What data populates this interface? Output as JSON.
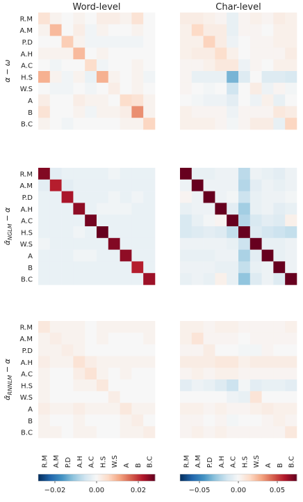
{
  "chart_data": {
    "type": "heatmap",
    "labels": [
      "R.M",
      "A.M",
      "P.D",
      "A.H",
      "A.C",
      "H.S",
      "W.S",
      "A",
      "B",
      "B.C"
    ],
    "columns": [
      "Word-level",
      "Char-level"
    ],
    "row_labels": [
      "α − ω",
      "ᾱ_NGLM − α",
      "ᾱ_RNNLM − α"
    ],
    "row_label_parts": [
      {
        "main": "α − ω",
        "sub": ""
      },
      {
        "main": "ᾱ",
        "sub": "NGLM",
        "rest": " − α"
      },
      {
        "main": "ᾱ",
        "sub": "RNNLM",
        "rest": " − α"
      }
    ],
    "colorbars": [
      {
        "ticks": [
          "−0.02",
          "0.00",
          "0.02"
        ],
        "tick_values": [
          -0.02,
          0,
          0.02
        ],
        "range": [
          -0.028,
          0.028
        ]
      },
      {
        "ticks": [
          "−0.05",
          "0.00",
          "0.05"
        ],
        "tick_values": [
          -0.05,
          0,
          0.05
        ],
        "range": [
          -0.075,
          0.075
        ]
      }
    ],
    "colormap": "RdBu_r",
    "panels": [
      {
        "row": 0,
        "col": 0,
        "matrix": [
          [
            0.004,
            0.001,
            0.0,
            0.001,
            0.0,
            0.002,
            0.002,
            0.001,
            0.004,
            0.0
          ],
          [
            0.001,
            0.009,
            0.0,
            0.002,
            -0.001,
            0.001,
            0.0,
            0.0,
            0.001,
            0.0
          ],
          [
            0.0,
            0.0,
            0.007,
            0.001,
            -0.001,
            -0.001,
            -0.001,
            -0.001,
            -0.001,
            0.0
          ],
          [
            0.001,
            0.001,
            0.001,
            0.009,
            0.0,
            0.001,
            0.0,
            0.0,
            0.0,
            0.0
          ],
          [
            0.0,
            -0.001,
            0.0,
            0.0,
            0.005,
            -0.001,
            0.0,
            0.0,
            0.001,
            0.0
          ],
          [
            0.01,
            0.001,
            -0.001,
            0.001,
            -0.002,
            0.01,
            0.001,
            0.0,
            0.001,
            -0.001
          ],
          [
            0.0,
            -0.001,
            -0.001,
            0.0,
            -0.001,
            0.0,
            0.002,
            0.0,
            0.001,
            0.0
          ],
          [
            0.002,
            0.0,
            0.0,
            0.002,
            0.001,
            0.001,
            0.0,
            0.005,
            0.004,
            0.001
          ],
          [
            0.004,
            0.0,
            0.0,
            0.001,
            -0.001,
            0.001,
            0.001,
            0.002,
            0.013,
            0.001
          ],
          [
            0.001,
            0.0,
            -0.001,
            0.0,
            0.0,
            0.0,
            0.0,
            0.001,
            0.001,
            0.006
          ]
        ]
      },
      {
        "row": 0,
        "col": 1,
        "matrix": [
          [
            0.006,
            0.006,
            0.004,
            0.002,
            -0.006,
            0.002,
            0.004,
            0.002,
            0.006,
            0.004
          ],
          [
            0.004,
            0.015,
            0.006,
            0.006,
            -0.006,
            0.002,
            0.002,
            0.0,
            0.004,
            0.004
          ],
          [
            0.004,
            0.004,
            0.017,
            0.006,
            -0.004,
            0.0,
            0.002,
            0.002,
            0.004,
            0.004
          ],
          [
            0.004,
            0.006,
            0.006,
            0.013,
            0.004,
            0.0,
            0.002,
            0.002,
            0.002,
            0.006
          ],
          [
            0.002,
            0.002,
            0.004,
            0.008,
            0.008,
            -0.004,
            0.002,
            0.0,
            0.004,
            0.004
          ],
          [
            0.002,
            -0.006,
            -0.006,
            -0.006,
            -0.035,
            -0.01,
            0.0,
            -0.01,
            -0.01,
            -0.012
          ],
          [
            0.002,
            0.0,
            -0.002,
            0.0,
            -0.015,
            0.0,
            0.006,
            -0.004,
            0.002,
            -0.002
          ],
          [
            0.0,
            -0.002,
            -0.004,
            -0.004,
            -0.008,
            0.0,
            -0.004,
            0.004,
            -0.006,
            0.0
          ],
          [
            0.004,
            0.002,
            0.002,
            0.002,
            -0.004,
            0.002,
            0.002,
            0.002,
            0.008,
            0.006
          ],
          [
            0.004,
            0.004,
            0.004,
            0.002,
            -0.002,
            0.002,
            0.006,
            0.006,
            -0.006,
            0.016
          ]
        ]
      },
      {
        "row": 1,
        "col": 0,
        "matrix": [
          [
            0.026,
            -0.003,
            -0.002,
            -0.002,
            -0.002,
            -0.002,
            -0.001,
            -0.002,
            -0.002,
            -0.002
          ],
          [
            -0.003,
            0.022,
            -0.003,
            -0.002,
            -0.002,
            -0.002,
            -0.002,
            -0.002,
            -0.002,
            -0.002
          ],
          [
            -0.002,
            -0.002,
            0.023,
            -0.002,
            -0.002,
            -0.002,
            -0.001,
            -0.002,
            -0.001,
            -0.002
          ],
          [
            -0.002,
            -0.002,
            -0.002,
            0.025,
            -0.002,
            -0.001,
            -0.001,
            -0.001,
            -0.002,
            -0.002
          ],
          [
            -0.002,
            -0.002,
            -0.002,
            -0.002,
            0.027,
            -0.002,
            -0.002,
            -0.002,
            -0.002,
            -0.002
          ],
          [
            -0.002,
            -0.002,
            -0.002,
            -0.001,
            -0.002,
            0.03,
            -0.002,
            -0.002,
            -0.002,
            -0.002
          ],
          [
            -0.001,
            -0.002,
            -0.002,
            -0.002,
            -0.002,
            -0.002,
            0.026,
            -0.002,
            -0.002,
            -0.002
          ],
          [
            -0.002,
            -0.002,
            -0.002,
            -0.001,
            -0.001,
            -0.002,
            -0.002,
            0.025,
            -0.002,
            -0.002
          ],
          [
            -0.002,
            -0.002,
            -0.002,
            -0.002,
            -0.002,
            -0.002,
            -0.002,
            -0.002,
            0.022,
            -0.002
          ],
          [
            -0.002,
            -0.002,
            -0.002,
            -0.002,
            -0.002,
            -0.002,
            -0.002,
            -0.002,
            -0.002,
            0.024
          ]
        ]
      },
      {
        "row": 1,
        "col": 1,
        "matrix": [
          [
            0.075,
            -0.006,
            -0.006,
            -0.004,
            -0.004,
            -0.02,
            -0.004,
            -0.006,
            -0.008,
            -0.004
          ],
          [
            -0.004,
            0.075,
            -0.004,
            -0.004,
            -0.004,
            -0.022,
            -0.008,
            -0.004,
            -0.006,
            -0.004
          ],
          [
            0.002,
            -0.004,
            0.075,
            -0.004,
            -0.002,
            -0.016,
            -0.006,
            -0.004,
            -0.004,
            -0.002
          ],
          [
            -0.006,
            -0.004,
            -0.004,
            0.075,
            -0.008,
            -0.026,
            -0.006,
            -0.004,
            -0.008,
            -0.006
          ],
          [
            -0.012,
            -0.006,
            -0.002,
            0.002,
            0.075,
            -0.022,
            -0.012,
            -0.008,
            -0.01,
            0.004
          ],
          [
            -0.012,
            -0.01,
            -0.008,
            -0.01,
            -0.018,
            0.075,
            -0.01,
            -0.014,
            -0.016,
            -0.018
          ],
          [
            -0.004,
            -0.004,
            -0.004,
            -0.004,
            -0.006,
            -0.016,
            0.075,
            -0.006,
            -0.006,
            -0.004
          ],
          [
            -0.006,
            -0.006,
            -0.006,
            -0.004,
            -0.004,
            -0.024,
            -0.008,
            0.075,
            -0.006,
            -0.004
          ],
          [
            -0.004,
            -0.004,
            -0.004,
            -0.006,
            -0.006,
            -0.018,
            -0.006,
            -0.004,
            0.075,
            -0.004
          ],
          [
            -0.006,
            -0.004,
            -0.006,
            0.004,
            -0.006,
            -0.03,
            -0.01,
            -0.004,
            -0.01,
            0.075
          ]
        ]
      },
      {
        "row": 2,
        "col": 0,
        "matrix": [
          [
            0.003,
            0.001,
            0.001,
            0.001,
            0.0,
            0.001,
            0.001,
            0.001,
            0.001,
            0.001
          ],
          [
            0.001,
            0.002,
            0.001,
            0.001,
            0.0,
            0.001,
            0.0,
            0.0,
            0.0,
            0.001
          ],
          [
            0.001,
            0.001,
            0.002,
            0.001,
            0.0,
            0.0,
            0.0,
            0.0,
            0.0,
            0.0
          ],
          [
            0.002,
            0.001,
            0.001,
            0.004,
            0.002,
            0.001,
            0.001,
            0.001,
            0.001,
            0.001
          ],
          [
            0.001,
            0.0,
            0.0,
            0.002,
            0.004,
            0.001,
            0.0,
            0.001,
            0.0,
            0.0
          ],
          [
            0.001,
            0.0,
            0.0,
            0.001,
            0.001,
            0.003,
            0.0,
            0.0,
            0.0,
            0.0
          ],
          [
            0.001,
            0.0,
            0.0,
            0.0,
            0.0,
            0.0,
            0.002,
            0.0,
            0.0,
            0.0
          ],
          [
            0.002,
            0.001,
            0.001,
            0.002,
            0.001,
            0.001,
            0.001,
            0.003,
            0.001,
            0.001
          ],
          [
            0.001,
            0.0,
            0.0,
            0.001,
            0.0,
            0.0,
            0.0,
            0.001,
            0.002,
            0.0
          ],
          [
            0.001,
            0.001,
            0.0,
            0.001,
            0.001,
            0.0,
            0.0,
            0.001,
            0.001,
            0.002
          ]
        ]
      },
      {
        "row": 2,
        "col": 1,
        "matrix": [
          [
            0.004,
            0.004,
            0.002,
            0.004,
            0.004,
            0.002,
            0.002,
            0.002,
            0.002,
            0.004
          ],
          [
            0.004,
            0.01,
            0.002,
            0.002,
            0.002,
            0.0,
            0.002,
            0.002,
            0.002,
            0.002
          ],
          [
            0.002,
            0.002,
            0.006,
            0.0,
            0.0,
            -0.002,
            -0.002,
            0.002,
            0.0,
            0.0
          ],
          [
            0.006,
            0.006,
            0.006,
            0.008,
            0.008,
            0.004,
            0.006,
            0.006,
            0.006,
            0.006
          ],
          [
            0.002,
            0.004,
            0.002,
            0.004,
            0.004,
            0.002,
            0.002,
            0.002,
            0.002,
            0.002
          ],
          [
            -0.008,
            -0.004,
            -0.006,
            -0.01,
            -0.016,
            -0.002,
            -0.008,
            -0.006,
            -0.006,
            -0.008
          ],
          [
            0.0,
            0.0,
            0.0,
            0.0,
            -0.004,
            -0.006,
            0.01,
            0.0,
            0.0,
            0.0
          ],
          [
            0.004,
            0.004,
            0.002,
            0.004,
            0.002,
            0.002,
            0.004,
            0.006,
            0.004,
            0.004
          ],
          [
            0.002,
            0.002,
            0.0,
            0.002,
            -0.002,
            0.0,
            0.0,
            0.002,
            0.004,
            0.002
          ],
          [
            0.002,
            0.004,
            0.002,
            0.004,
            0.002,
            0.002,
            0.002,
            0.002,
            0.002,
            0.008
          ]
        ]
      }
    ]
  }
}
